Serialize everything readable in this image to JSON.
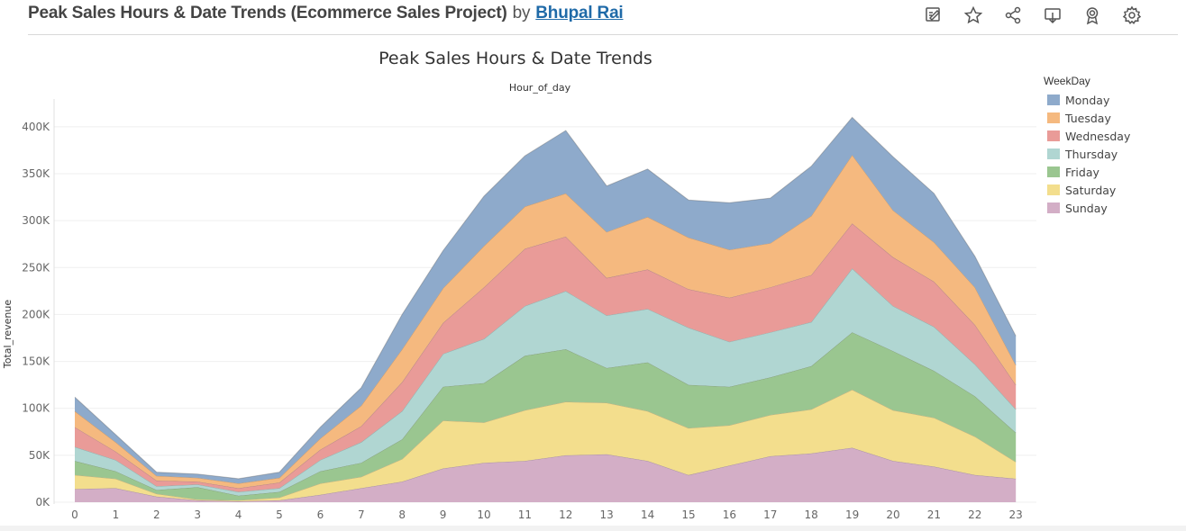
{
  "header": {
    "title": "Peak Sales Hours & Date Trends (Ecommerce Sales Project)",
    "by": "by",
    "author": "Bhupal Rai"
  },
  "toolbar": {
    "icons": [
      "edit-icon",
      "star-icon",
      "share-icon",
      "download-icon",
      "award-icon",
      "settings-icon"
    ]
  },
  "legend": {
    "title": "WeekDay",
    "items": [
      {
        "label": "Monday",
        "color": "#8eaacb"
      },
      {
        "label": "Tuesday",
        "color": "#f5b97f"
      },
      {
        "label": "Wednesday",
        "color": "#e99b98"
      },
      {
        "label": "Thursday",
        "color": "#b0d6d2"
      },
      {
        "label": "Friday",
        "color": "#9ac690"
      },
      {
        "label": "Saturday",
        "color": "#f3de8d"
      },
      {
        "label": "Sunday",
        "color": "#d3aec6"
      }
    ]
  },
  "chart_data": {
    "type": "area",
    "stacked": true,
    "title": "Peak Sales Hours & Date Trends",
    "xlabel": "Hour_of_day",
    "ylabel": "Total_revenue",
    "x": [
      0,
      1,
      2,
      3,
      4,
      5,
      6,
      7,
      8,
      9,
      10,
      11,
      12,
      13,
      14,
      15,
      16,
      17,
      18,
      19,
      20,
      21,
      22,
      23
    ],
    "ylim": [
      0,
      420000
    ],
    "yticks": [
      0,
      50000,
      100000,
      150000,
      200000,
      250000,
      300000,
      350000,
      400000
    ],
    "ytick_labels": [
      "0K",
      "50K",
      "100K",
      "150K",
      "200K",
      "250K",
      "300K",
      "350K",
      "400K"
    ],
    "grid": true,
    "legend_position": "right",
    "series": [
      {
        "name": "Sunday",
        "color": "#d3aec6",
        "values": [
          14000,
          15000,
          6000,
          2000,
          1000,
          2000,
          8000,
          15000,
          22000,
          36000,
          42000,
          44000,
          50000,
          51000,
          44000,
          29000,
          39000,
          49000,
          52000,
          58000,
          44000,
          38000,
          29000,
          25000
        ]
      },
      {
        "name": "Saturday",
        "color": "#f3de8d",
        "values": [
          15000,
          10000,
          3000,
          1000,
          1000,
          3000,
          12000,
          12000,
          24000,
          51000,
          43000,
          54000,
          57000,
          55000,
          53000,
          50000,
          43000,
          44000,
          47000,
          62000,
          54000,
          52000,
          41000,
          18000
        ]
      },
      {
        "name": "Friday",
        "color": "#9ac690",
        "values": [
          15000,
          8000,
          4000,
          13000,
          5000,
          6000,
          13000,
          15000,
          21000,
          36000,
          42000,
          58000,
          56000,
          37000,
          52000,
          46000,
          41000,
          40000,
          46000,
          61000,
          63000,
          50000,
          43000,
          31000
        ]
      },
      {
        "name": "Thursday",
        "color": "#b0d6d2",
        "values": [
          15000,
          12000,
          4000,
          3000,
          4000,
          4000,
          12000,
          22000,
          30000,
          35000,
          47000,
          53000,
          62000,
          56000,
          57000,
          61000,
          48000,
          48000,
          47000,
          68000,
          48000,
          47000,
          34000,
          25000
        ]
      },
      {
        "name": "Wednesday",
        "color": "#e99b98",
        "values": [
          21000,
          9000,
          6000,
          3000,
          4000,
          6000,
          11000,
          17000,
          31000,
          33000,
          55000,
          61000,
          58000,
          40000,
          42000,
          41000,
          47000,
          48000,
          50000,
          48000,
          52000,
          48000,
          42000,
          26000
        ]
      },
      {
        "name": "Tuesday",
        "color": "#f5b97f",
        "values": [
          17000,
          10000,
          5000,
          4000,
          5000,
          5000,
          12000,
          22000,
          35000,
          37000,
          44000,
          45000,
          46000,
          49000,
          56000,
          55000,
          51000,
          47000,
          63000,
          73000,
          50000,
          42000,
          40000,
          21000
        ]
      },
      {
        "name": "Monday",
        "color": "#8eaacb",
        "values": [
          15000,
          8000,
          4000,
          4000,
          5000,
          6000,
          12000,
          19000,
          37000,
          40000,
          53000,
          54000,
          67000,
          49000,
          51000,
          40000,
          50000,
          48000,
          53000,
          40000,
          57000,
          52000,
          33000,
          31000
        ]
      }
    ]
  }
}
